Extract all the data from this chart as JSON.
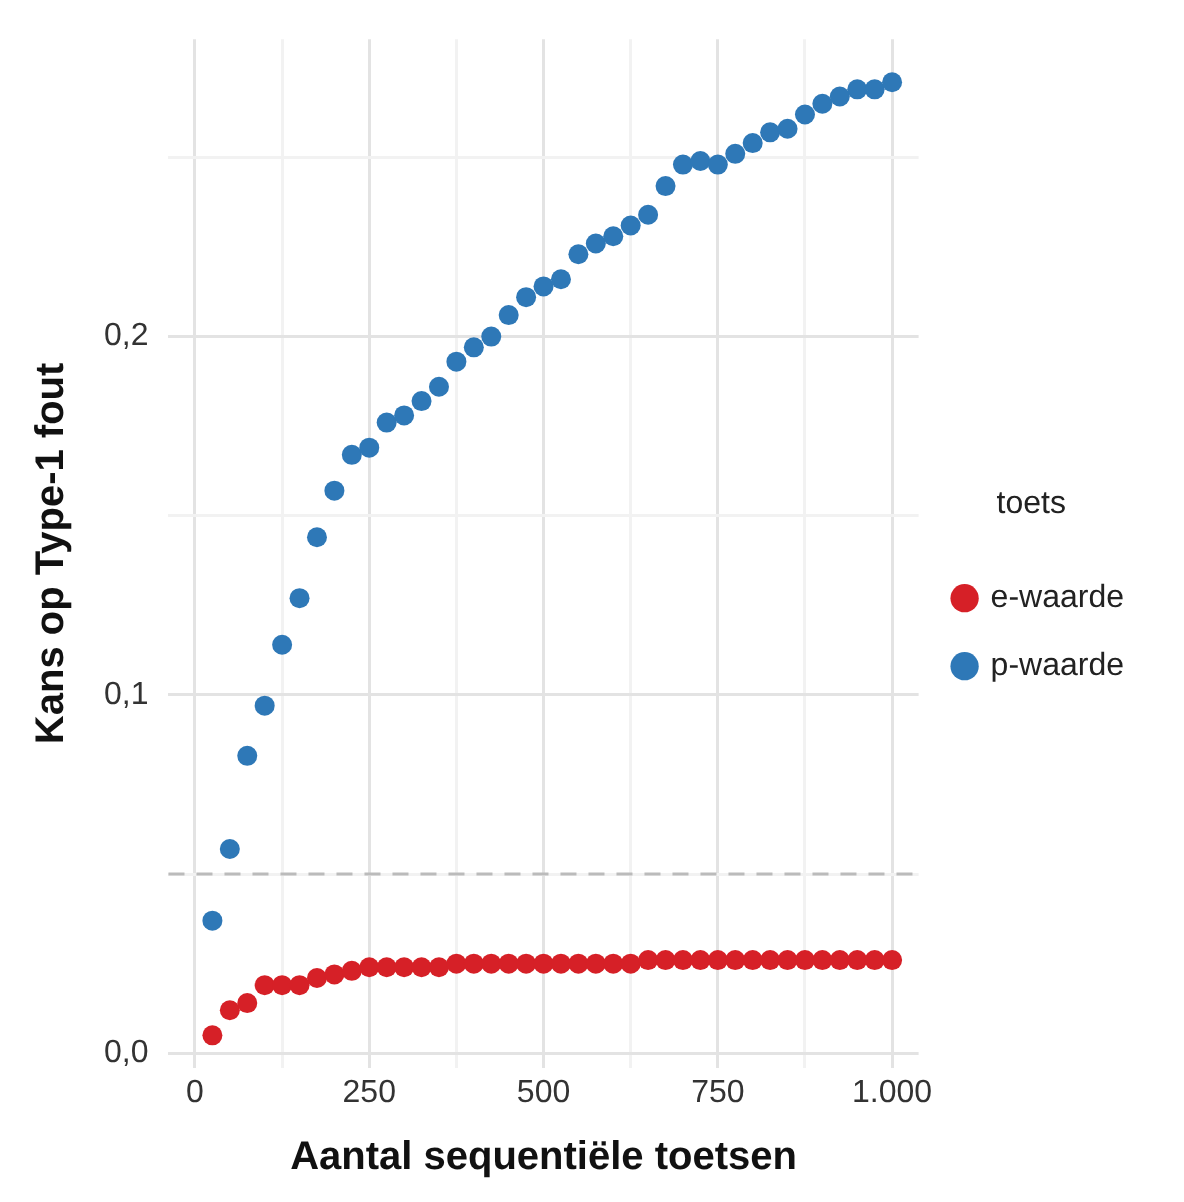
{
  "chart_data": {
    "type": "scatter",
    "xlabel": "Aantal sequentiële toetsen",
    "ylabel": "Kans op Type-1 fout",
    "legend_title": "toets",
    "legend": "right",
    "grid": true,
    "marker": "circle",
    "x": [
      25,
      50,
      75,
      100,
      125,
      150,
      175,
      200,
      225,
      250,
      275,
      300,
      325,
      350,
      375,
      400,
      425,
      450,
      475,
      500,
      525,
      550,
      575,
      600,
      625,
      650,
      675,
      700,
      725,
      750,
      775,
      800,
      825,
      850,
      875,
      900,
      925,
      950,
      975,
      1000
    ],
    "xlim": [
      -38,
      1038
    ],
    "ylim": [
      -0.004,
      0.283
    ],
    "xticks": [
      {
        "value": 0,
        "label": "0"
      },
      {
        "value": 125,
        "label": null
      },
      {
        "value": 250,
        "label": "250"
      },
      {
        "value": 375,
        "label": null
      },
      {
        "value": 500,
        "label": "500"
      },
      {
        "value": 625,
        "label": null
      },
      {
        "value": 750,
        "label": "750"
      },
      {
        "value": 875,
        "label": null
      },
      {
        "value": 1000,
        "label": "1.000"
      }
    ],
    "yticks": [
      {
        "value": 0,
        "label": "0,0"
      },
      {
        "value": 0.05,
        "label": null
      },
      {
        "value": 0.1,
        "label": "0,1"
      },
      {
        "value": 0.15,
        "label": null
      },
      {
        "value": 0.2,
        "label": "0,2"
      },
      {
        "value": 0.25,
        "label": null
      }
    ],
    "ref_lines": [
      {
        "axis": "y",
        "value": 0.05,
        "color": "#bbbbbb",
        "line_style": "dashed"
      }
    ],
    "series": [
      {
        "name": "e-waarde",
        "color": "#d62027",
        "values": [
          0.005,
          0.012,
          0.014,
          0.019,
          0.019,
          0.019,
          0.021,
          0.022,
          0.023,
          0.024,
          0.024,
          0.024,
          0.024,
          0.024,
          0.025,
          0.025,
          0.025,
          0.025,
          0.025,
          0.025,
          0.025,
          0.025,
          0.025,
          0.025,
          0.025,
          0.026,
          0.026,
          0.026,
          0.026,
          0.026,
          0.026,
          0.026,
          0.026,
          0.026,
          0.026,
          0.026,
          0.026,
          0.026,
          0.026,
          0.026
        ]
      },
      {
        "name": "p-waarde",
        "color": "#2e78b7",
        "values": [
          0.037,
          0.057,
          0.083,
          0.097,
          0.114,
          0.127,
          0.144,
          0.157,
          0.167,
          0.169,
          0.176,
          0.178,
          0.182,
          0.186,
          0.193,
          0.197,
          0.2,
          0.206,
          0.211,
          0.214,
          0.216,
          0.223,
          0.226,
          0.228,
          0.231,
          0.234,
          0.242,
          0.248,
          0.249,
          0.248,
          0.251,
          0.254,
          0.257,
          0.258,
          0.262,
          0.265,
          0.267,
          0.269,
          0.269,
          0.271
        ]
      }
    ]
  }
}
